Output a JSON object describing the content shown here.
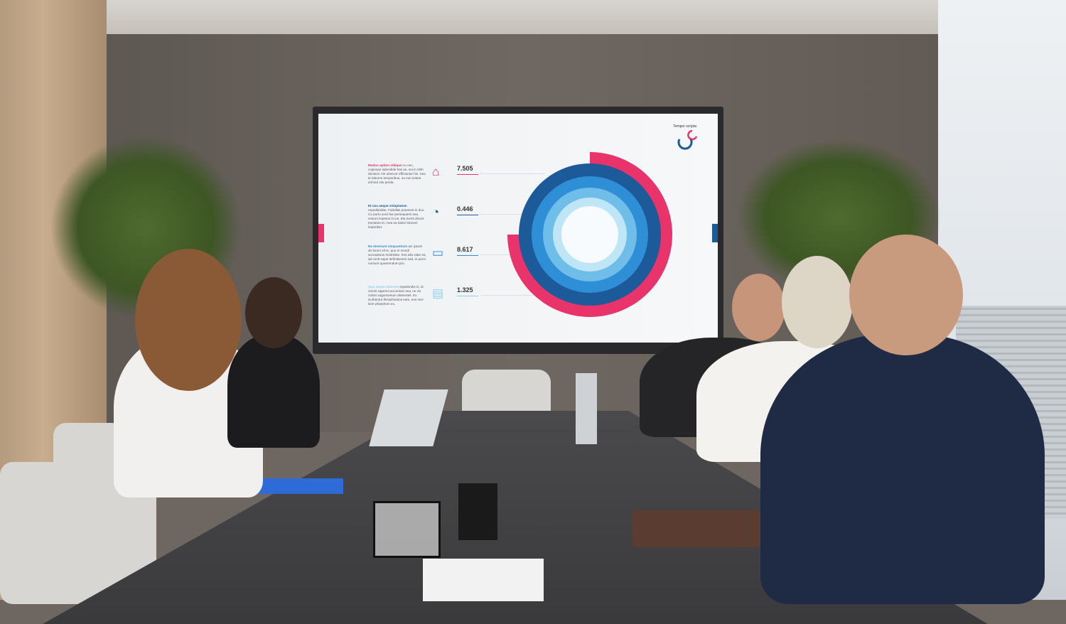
{
  "scene": "meeting-room",
  "display": {
    "brand_text": "Tempor scripta",
    "accent_colors": {
      "pink": "#e8336b",
      "navy": "#1d5a9a",
      "blue": "#2f8fd6",
      "light_blue": "#8ecff0"
    },
    "rows": [
      {
        "title": "Modus option oblique",
        "text": " cu nec, copiosae splendide has an, sui in nibh deniecit. Ne ulamcor efficiantur his. Sea te labores temporibus, ea mei soleat eirmod vitu perda.",
        "icon": "house-icon",
        "value": "7.505",
        "color": "#e8336b"
      },
      {
        "title": "Et usu aeque voluptatum",
        "text": " repudiandae. Fabellas praesent in duo. Cu porto ancil-lae persequeris sea. Harum impetus in ius. Est everti dicunt tractatos et, mea ea tation timeam imperdiet.",
        "icon": "pie-chart-icon",
        "value": "0.446",
        "color": "#1d5a9a"
      },
      {
        "title": "Ne deserunt sinquantium",
        "text": " ad, ipsum do-lorum sit te, quo ei mundi accusamus molestiae. Eos alia vitae ea, ad contr-eque definitionem sed, ei porro numure quaerendum pro.",
        "icon": "monitor-icon",
        "value": "8.617",
        "color": "#2f8fd6"
      },
      {
        "title": "Quo aeque dolorem",
        "text": " expetendis in, id omnis saperet accumsan sea, ne vis nostro argumentum dissentiet. Ex scribentur theophrastus eam, eos mei-liore phaedrum eu.",
        "icon": "chat-icon",
        "value": "1.325",
        "color": "#8ecff0"
      }
    ]
  }
}
